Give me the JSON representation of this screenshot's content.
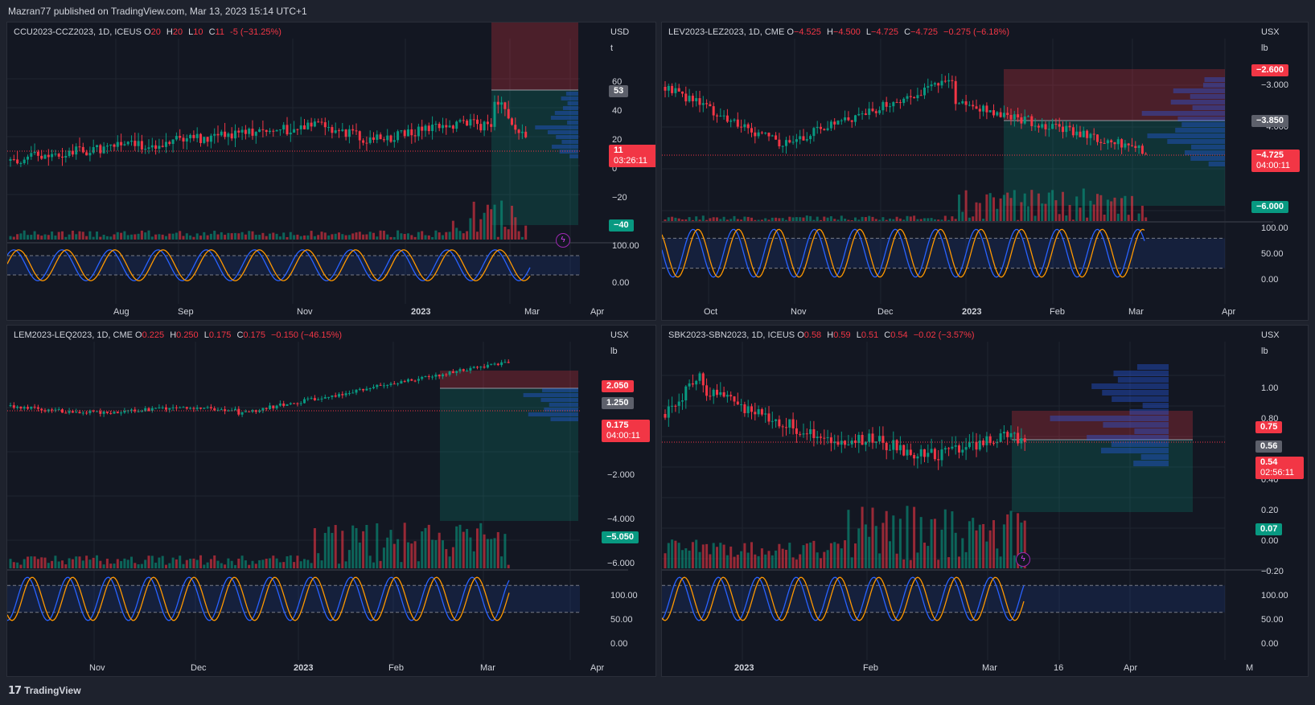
{
  "publisher": "Mazran77 published on TradingView.com, Mar 13, 2023 15:14 UTC+1",
  "footer_brand": "TradingView",
  "colors": {
    "bull": "#089981",
    "bear": "#f23645",
    "stochK": "#2962ff",
    "stochD": "#ff9800",
    "accent": "#2962ff"
  },
  "panels": [
    {
      "symbol": "CCU2023-CCZ2023, 1D, ICEUS",
      "ohlc": [
        [
          "O",
          "20"
        ],
        [
          "H",
          "20"
        ],
        [
          "L",
          "10"
        ],
        [
          "C",
          "11"
        ],
        [
          "",
          "-5 (−31.25%)"
        ]
      ],
      "currency": "USD",
      "unit": "t",
      "price_ticks": [
        "60",
        "40",
        "20",
        "0",
        "−20"
      ],
      "x_ticks": [
        "Aug",
        "Sep",
        "Nov",
        "2023",
        "Mar",
        "Apr"
      ],
      "osc_ticks": [
        "100.00",
        "0.00"
      ],
      "tags": {
        "target": "53",
        "price": "11",
        "countdown": "03:26:11",
        "stop": "−40"
      }
    },
    {
      "symbol": "LEV2023-LEZ2023, 1D, CME",
      "ohlc": [
        [
          "O",
          "−4.525"
        ],
        [
          "H",
          "−4.500"
        ],
        [
          "L",
          "−4.725"
        ],
        [
          "C",
          "−4.725"
        ],
        [
          "",
          "−0.275 (−6.18%)"
        ]
      ],
      "currency": "USX",
      "unit": "lb",
      "price_ticks": [
        "−3.000",
        "−4.000"
      ],
      "x_ticks": [
        "Oct",
        "Nov",
        "Dec",
        "2023",
        "Feb",
        "Mar",
        "Apr"
      ],
      "osc_ticks": [
        "100.00",
        "50.00",
        "0.00"
      ],
      "tags": {
        "top": "−2.600",
        "target": "−3.850",
        "price": "−4.725",
        "countdown": "04:00:11",
        "stop": "−6.000"
      }
    },
    {
      "symbol": "LEM2023-LEQ2023, 1D, CME",
      "ohlc": [
        [
          "O",
          "0.225"
        ],
        [
          "H",
          "0.250"
        ],
        [
          "L",
          "0.175"
        ],
        [
          "C",
          "0.175"
        ],
        [
          "",
          "−0.150 (−46.15%)"
        ]
      ],
      "currency": "USX",
      "unit": "lb",
      "price_ticks": [
        "−2.000",
        "−4.000",
        "−6.000"
      ],
      "x_ticks": [
        "Nov",
        "Dec",
        "2023",
        "Feb",
        "Mar",
        "Apr"
      ],
      "osc_ticks": [
        "100.00",
        "50.00",
        "0.00"
      ],
      "tags": {
        "top": "2.050",
        "target": "1.250",
        "price": "0.175",
        "countdown": "04:00:11",
        "stop": "−5.050"
      }
    },
    {
      "symbol": "SBK2023-SBN2023, 1D, ICEUS",
      "ohlc": [
        [
          "O",
          "0.58"
        ],
        [
          "H",
          "0.59"
        ],
        [
          "L",
          "0.51"
        ],
        [
          "C",
          "0.54"
        ],
        [
          "",
          "−0.02 (−3.57%)"
        ]
      ],
      "currency": "USX",
      "unit": "lb",
      "price_ticks": [
        "1.00",
        "0.80",
        "0.40",
        "0.20",
        "0.00",
        "−0.20"
      ],
      "x_ticks": [
        "2023",
        "Feb",
        "Mar",
        "16",
        "Apr",
        "M"
      ],
      "osc_ticks": [
        "100.00",
        "50.00",
        "0.00"
      ],
      "tags": {
        "top": "0.75",
        "target": "0.56",
        "price": "0.54",
        "countdown": "02:56:11",
        "stop": "0.07"
      }
    }
  ]
}
